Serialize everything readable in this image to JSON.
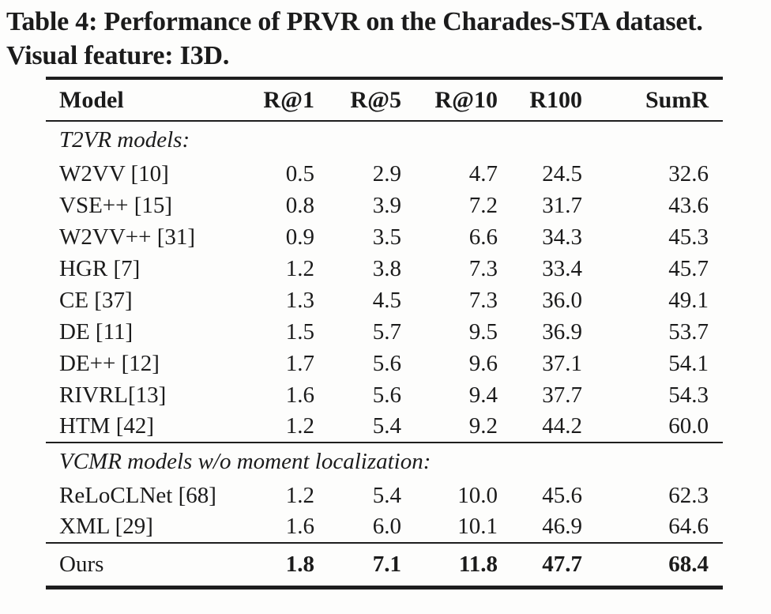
{
  "caption": {
    "line1": "Table 4: Performance of PRVR on the Charades-STA dataset.",
    "line2": "Visual feature: I3D."
  },
  "colors": {
    "text": "#1b1b1b",
    "rule": "#1e1e1e",
    "background": "#fdfdfc"
  },
  "table": {
    "columns": [
      "Model",
      "R@1",
      "R@5",
      "R@10",
      "R100",
      "SumR"
    ],
    "sections": [
      {
        "label": "T2VR models:",
        "rows": [
          {
            "model": "W2VV [10]",
            "values": [
              "0.5",
              "2.9",
              "4.7",
              "24.5",
              "32.6"
            ],
            "bold": false
          },
          {
            "model": "VSE++ [15]",
            "values": [
              "0.8",
              "3.9",
              "7.2",
              "31.7",
              "43.6"
            ],
            "bold": false
          },
          {
            "model": "W2VV++ [31]",
            "values": [
              "0.9",
              "3.5",
              "6.6",
              "34.3",
              "45.3"
            ],
            "bold": false
          },
          {
            "model": "HGR [7]",
            "values": [
              "1.2",
              "3.8",
              "7.3",
              "33.4",
              "45.7"
            ],
            "bold": false
          },
          {
            "model": "CE [37]",
            "values": [
              "1.3",
              "4.5",
              "7.3",
              "36.0",
              "49.1"
            ],
            "bold": false
          },
          {
            "model": "DE [11]",
            "values": [
              "1.5",
              "5.7",
              "9.5",
              "36.9",
              "53.7"
            ],
            "bold": false
          },
          {
            "model": "DE++ [12]",
            "values": [
              "1.7",
              "5.6",
              "9.6",
              "37.1",
              "54.1"
            ],
            "bold": false
          },
          {
            "model": "RIVRL[13]",
            "values": [
              "1.6",
              "5.6",
              "9.4",
              "37.7",
              "54.3"
            ],
            "bold": false
          },
          {
            "model": "HTM [42]",
            "values": [
              "1.2",
              "5.4",
              "9.2",
              "44.2",
              "60.0"
            ],
            "bold": false
          }
        ]
      },
      {
        "label": "VCMR models w/o moment localization:",
        "rows": [
          {
            "model": "ReLoCLNet [68]",
            "values": [
              "1.2",
              "5.4",
              "10.0",
              "45.6",
              "62.3"
            ],
            "bold": false
          },
          {
            "model": "XML [29]",
            "values": [
              "1.6",
              "6.0",
              "10.1",
              "46.9",
              "64.6"
            ],
            "bold": false
          }
        ]
      },
      {
        "label": null,
        "rows": [
          {
            "model": "Ours",
            "values": [
              "1.8",
              "7.1",
              "11.8",
              "47.7",
              "68.4"
            ],
            "bold": true
          }
        ]
      }
    ]
  }
}
